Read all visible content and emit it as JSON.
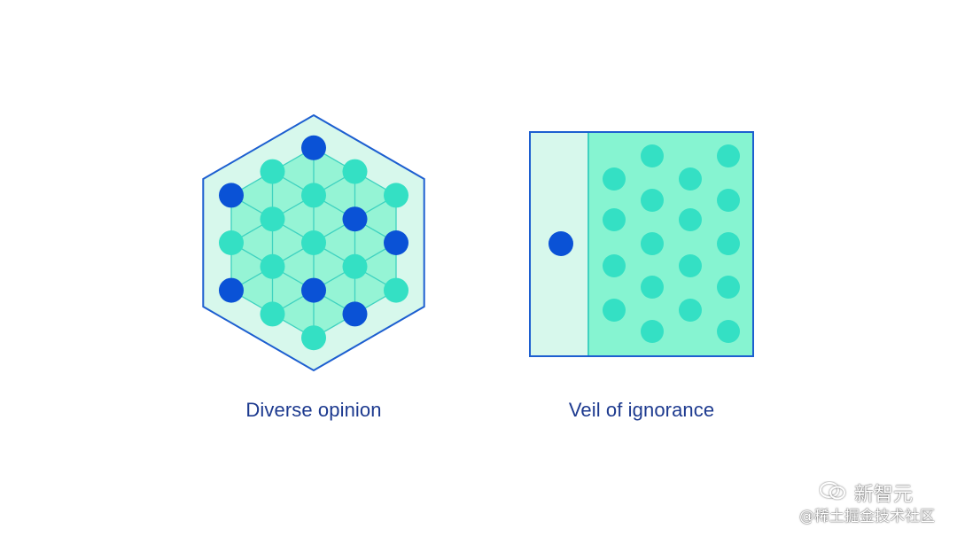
{
  "colors": {
    "outline": "#1d5fd0",
    "fill_light": "#d7f8ec",
    "fill_mid": "#5ef0c2",
    "dot_teal": "#34e0c4",
    "dot_blue": "#0a52d6",
    "grid_line": "#3fd2c0",
    "caption": "#1d3a8f"
  },
  "panels": [
    {
      "caption": "Diverse opinion"
    },
    {
      "caption": "Veil of ignorance"
    }
  ],
  "hex_dots": [
    {
      "tone": "blue"
    },
    {
      "tone": "teal"
    },
    {
      "tone": "teal"
    },
    {
      "tone": "teal"
    },
    {
      "tone": "blue"
    },
    {
      "tone": "teal"
    },
    {
      "tone": "teal"
    },
    {
      "tone": "blue"
    },
    {
      "tone": "teal"
    },
    {
      "tone": "teal"
    },
    {
      "tone": "teal"
    },
    {
      "tone": "blue"
    },
    {
      "tone": "blue"
    },
    {
      "tone": "teal"
    },
    {
      "tone": "blue"
    },
    {
      "tone": "teal"
    },
    {
      "tone": "teal"
    },
    {
      "tone": "teal"
    },
    {
      "tone": "blue"
    },
    {
      "tone": "teal"
    }
  ],
  "watermark": {
    "brand": "新智元",
    "handle": "@稀土掘金技术社区"
  }
}
